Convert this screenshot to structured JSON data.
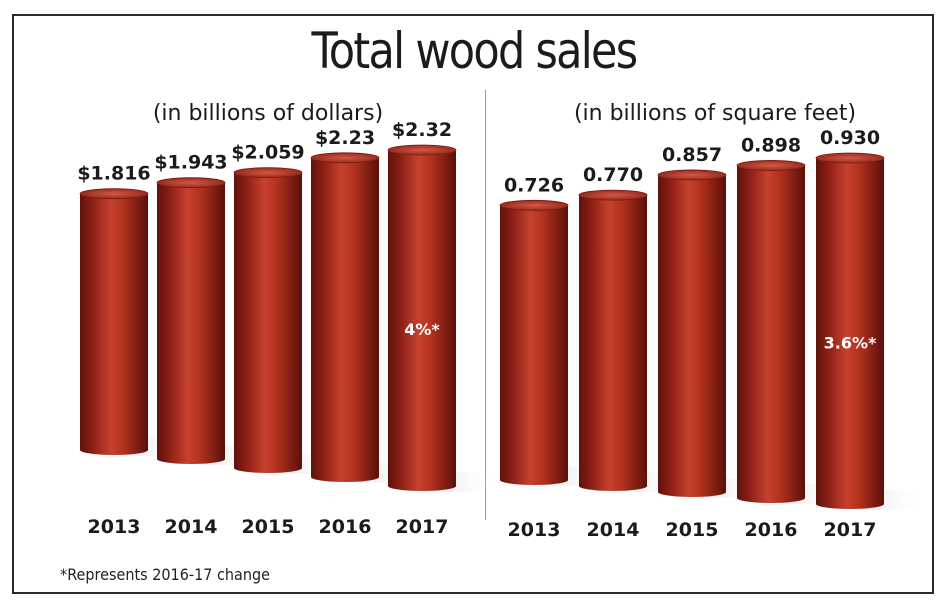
{
  "title": "Total wood sales",
  "footnote": "*Represents 2016-17 change",
  "chart_data": [
    {
      "type": "bar",
      "subtitle": "(in billions of dollars)",
      "categories": [
        "2013",
        "2014",
        "2015",
        "2016",
        "2017"
      ],
      "values": [
        1.816,
        1.943,
        2.059,
        2.23,
        2.32
      ],
      "value_labels": [
        "$1.816",
        "$1.943",
        "$2.059",
        "$2.23",
        "$2.32"
      ],
      "annotation": "4%*",
      "annotation_category": "2017",
      "bar_color": "#a3261b",
      "ylim": [
        0,
        2.5
      ]
    },
    {
      "type": "bar",
      "subtitle": "(in billions of square feet)",
      "categories": [
        "2013",
        "2014",
        "2015",
        "2016",
        "2017"
      ],
      "values": [
        0.726,
        0.77,
        0.857,
        0.898,
        0.93
      ],
      "value_labels": [
        "0.726",
        "0.770",
        "0.857",
        "0.898",
        "0.930"
      ],
      "annotation": "3.6%*",
      "annotation_category": "2017",
      "bar_color": "#a3261b",
      "ylim": [
        0,
        1.0
      ]
    }
  ]
}
